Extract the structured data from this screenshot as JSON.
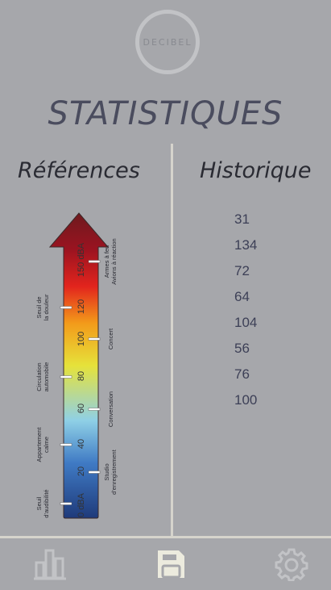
{
  "app": {
    "logo_text": "DECIBEL",
    "page_title": "STATISTIQUES"
  },
  "references": {
    "header": "Références",
    "scale_ticks": [
      "0 dBA",
      "20",
      "40",
      "60",
      "80",
      "100",
      "120",
      "150 dBA"
    ],
    "annotations": [
      {
        "text": "Seuil d'audibilité",
        "side": "left"
      },
      {
        "text": "Studio d'enregistrement",
        "side": "right"
      },
      {
        "text": "Appartement calme",
        "side": "left"
      },
      {
        "text": "Conversation",
        "side": "right"
      },
      {
        "text": "Circulation automobile",
        "side": "left"
      },
      {
        "text": "Concert",
        "side": "right"
      },
      {
        "text": "Seuil de la douleur",
        "side": "left"
      },
      {
        "text": "Armes à feu Avions à réaction",
        "side": "right"
      }
    ],
    "gradient_colors": [
      "#1f3a7a",
      "#3f7ac4",
      "#8fd0e6",
      "#e6e23a",
      "#f39a1a",
      "#e2241d",
      "#9b1320",
      "#6e1a1e"
    ]
  },
  "history": {
    "header": "Historique",
    "values": [
      "31",
      "134",
      "72",
      "64",
      "104",
      "56",
      "76",
      "100"
    ]
  },
  "navbar": {
    "items": [
      {
        "name": "stats-icon",
        "active": false
      },
      {
        "name": "save-icon",
        "active": true
      },
      {
        "name": "settings-icon",
        "active": false
      }
    ],
    "icon_color": "#c2c3c6",
    "active_color": "#ecebde"
  }
}
